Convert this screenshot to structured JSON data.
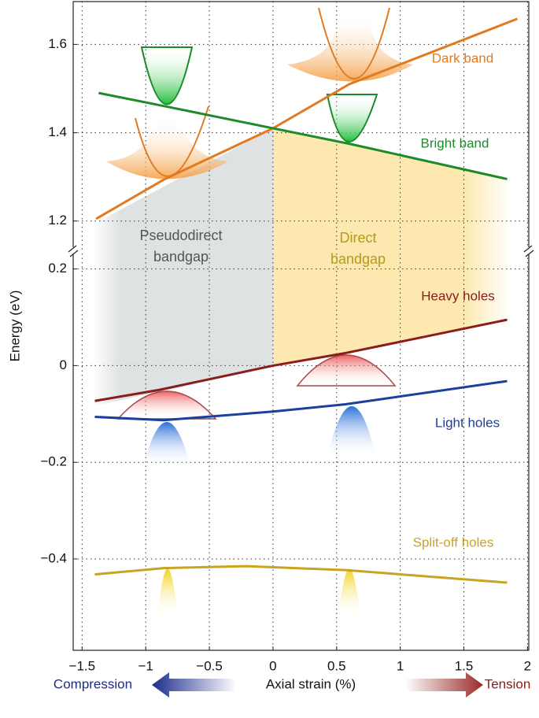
{
  "chart_data": [
    {
      "type": "line",
      "ylabel": "Energy (eV)",
      "xlim": [
        -1.57,
        2.01
      ],
      "ylim": [
        1.13,
        1.697
      ],
      "yticks": [
        1.2,
        1.4,
        1.6
      ],
      "grid": true,
      "annotations": [
        [
          "Pseudodirect",
          "bandgap"
        ],
        [
          "Direct",
          "bandgap"
        ]
      ],
      "series": [
        {
          "name": "Dark band",
          "color": "#e07b22",
          "x": [
            -1.39,
            -0.85,
            0,
            0.6,
            1.92
          ],
          "values": [
            1.205,
            1.295,
            1.41,
            1.51,
            1.658
          ]
        },
        {
          "name": "Bright band",
          "color": "#1d8a2c",
          "x": [
            -1.37,
            -0.85,
            0,
            0.6,
            1.84
          ],
          "values": [
            1.49,
            1.46,
            1.41,
            1.375,
            1.295
          ]
        }
      ]
    },
    {
      "type": "line",
      "xlabel": "Axial strain (%)",
      "xlabel_left": "Compression",
      "xlabel_right": "Tension",
      "xlim": [
        -1.57,
        2.01
      ],
      "ylim": [
        -0.589,
        0.232
      ],
      "xticks": [
        {
          "value": -1.5,
          "label": "−1.5"
        },
        {
          "value": -1,
          "label": "−1"
        },
        {
          "value": -0.5,
          "label": "−0.5"
        },
        0,
        0.5,
        1,
        1.5,
        2
      ],
      "yticks": [
        {
          "value": -0.4,
          "label": "−0.4"
        },
        {
          "value": -0.2,
          "label": "−0.2"
        },
        0,
        0.2
      ],
      "grid": true,
      "series": [
        {
          "name": "Heavy holes",
          "color": "#8b1c1c",
          "x": [
            -1.4,
            -0.89,
            0,
            0.57,
            1.84
          ],
          "values": [
            -0.073,
            -0.05,
            0,
            0.026,
            0.095
          ]
        },
        {
          "name": "Light holes",
          "color": "#1b3f9c",
          "x": [
            -1.4,
            -0.86,
            0,
            0.57,
            1.84
          ],
          "values": [
            -0.106,
            -0.113,
            -0.095,
            -0.08,
            -0.032
          ]
        },
        {
          "name": "Split-off holes",
          "color": "#c9a424",
          "x": [
            -1.4,
            -0.86,
            -0.21,
            0.57,
            1.84
          ],
          "values": [
            -0.432,
            -0.419,
            -0.415,
            -0.423,
            -0.449
          ]
        }
      ]
    }
  ]
}
